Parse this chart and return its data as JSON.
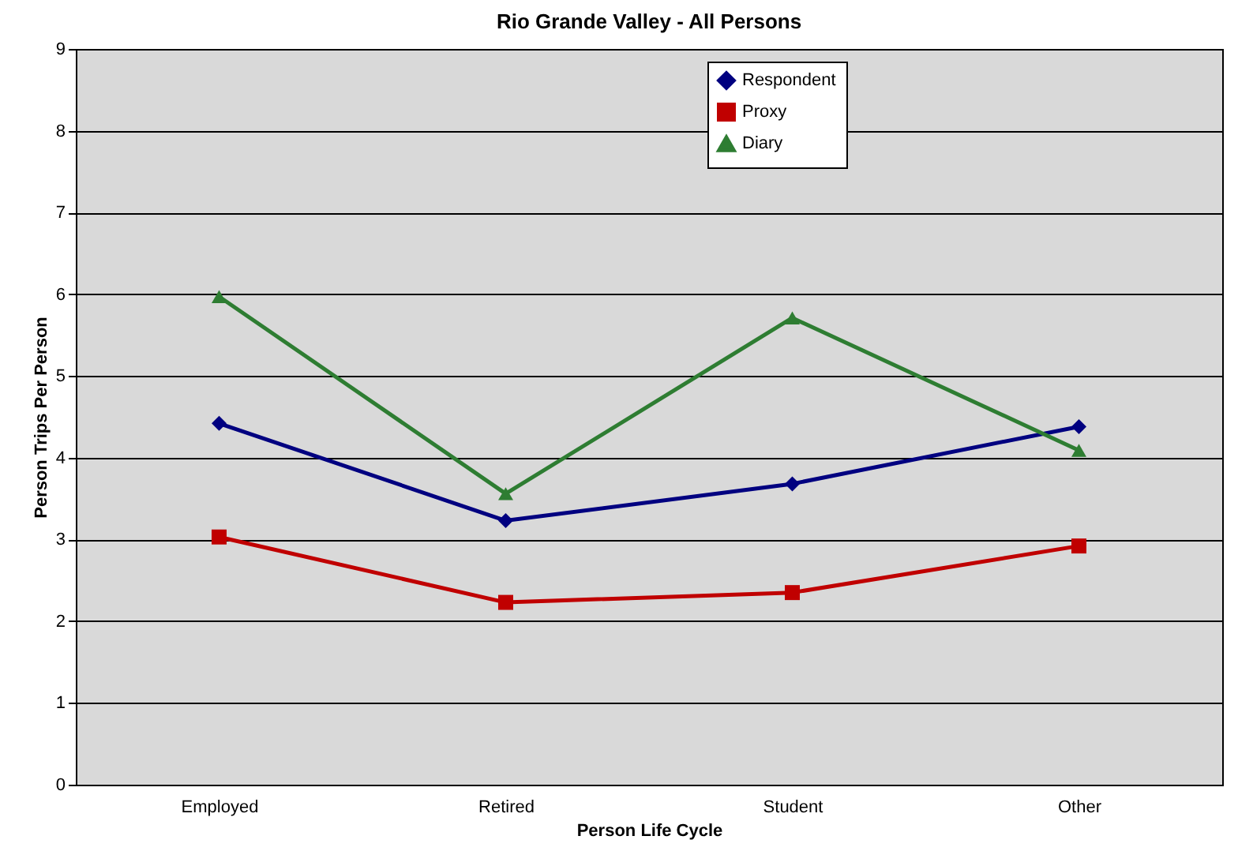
{
  "chart_data": {
    "type": "line",
    "title": "Rio Grande Valley - All Persons",
    "xlabel": "Person Life Cycle",
    "ylabel": "Person Trips Per Person",
    "categories": [
      "Employed",
      "Retired",
      "Student",
      "Other"
    ],
    "series": [
      {
        "name": "Respondent",
        "color": "#000080",
        "marker": "diamond",
        "values": [
          4.42,
          3.23,
          3.68,
          4.38
        ]
      },
      {
        "name": "Proxy",
        "color": "#c00000",
        "marker": "square",
        "values": [
          3.03,
          2.23,
          2.35,
          2.92
        ]
      },
      {
        "name": "Diary",
        "color": "#2e7d32",
        "marker": "triangle",
        "values": [
          5.97,
          3.56,
          5.71,
          4.09
        ]
      }
    ],
    "ylim": [
      0,
      9
    ],
    "yticks": [
      0,
      1,
      2,
      3,
      4,
      5,
      6,
      7,
      8,
      9
    ],
    "grid": "y",
    "legend": "top",
    "line_style": "solid"
  }
}
